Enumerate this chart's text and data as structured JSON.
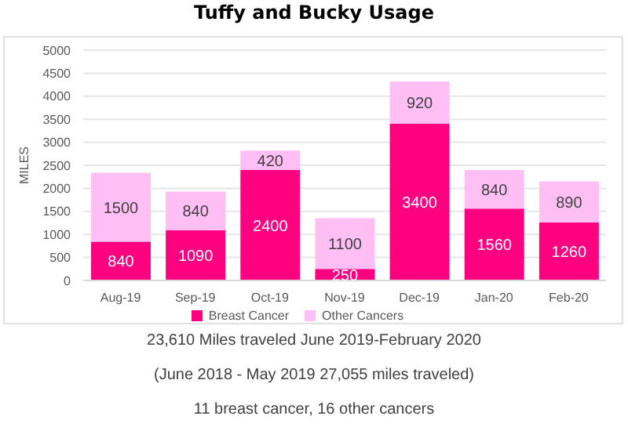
{
  "chart_data": {
    "type": "bar",
    "title": "Tuffy and Bucky Usage",
    "ylabel": "MILES",
    "categories": [
      "Aug-19",
      "Sep-19",
      "Oct-19",
      "Nov-19",
      "Dec-19",
      "Jan-20",
      "Feb-20"
    ],
    "series": [
      {
        "name": "Breast Cancer",
        "color": "#ff0080",
        "values": [
          840,
          1090,
          2400,
          250,
          3400,
          1560,
          1260
        ]
      },
      {
        "name": "Other Cancers",
        "color": "#ffbff5",
        "values": [
          1500,
          840,
          420,
          1100,
          920,
          840,
          890
        ]
      }
    ],
    "stacked": true,
    "ylim": [
      0,
      5000
    ],
    "yticks": [
      0,
      500,
      1000,
      1500,
      2000,
      2500,
      3000,
      3500,
      4000,
      4500,
      5000
    ],
    "grid": "y",
    "legend": "bottom",
    "data_labels": true,
    "annotations": [
      "23,610 Miles traveled June 2019-February 2020",
      "(June 2018 - May 2019 27,055 miles traveled)",
      "11 breast cancer, 16 other cancers"
    ]
  }
}
